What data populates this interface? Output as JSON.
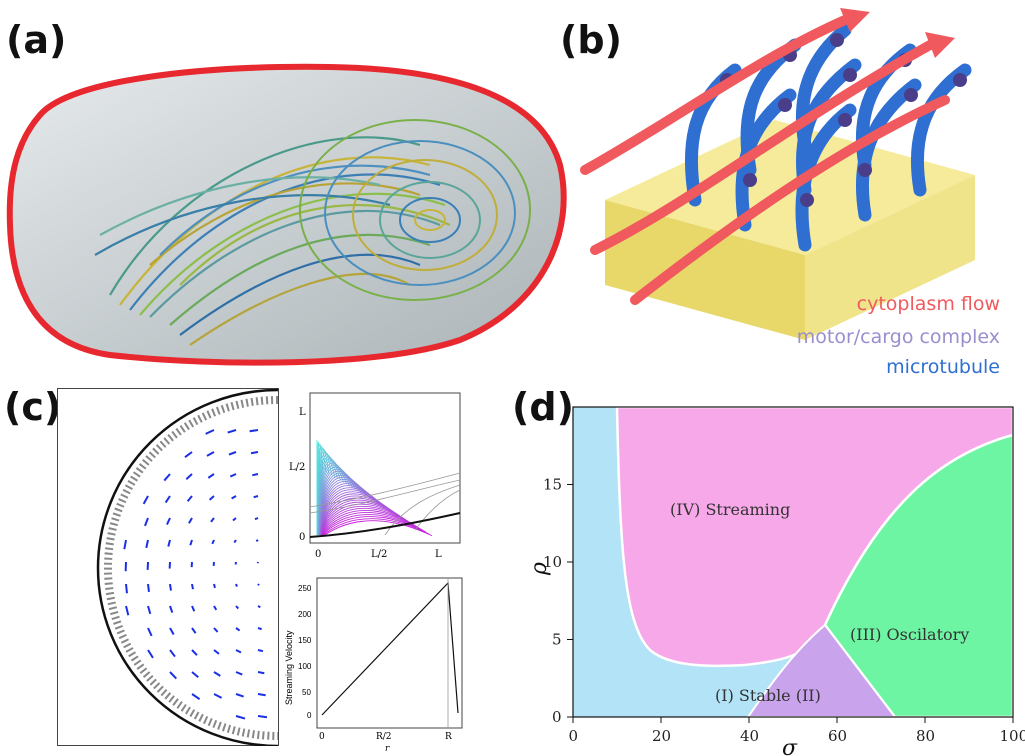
{
  "panels": {
    "a": {
      "label": "(a)"
    },
    "b": {
      "label": "(b)",
      "legend": {
        "flow": "cytoplasm flow",
        "motor": "motor/cargo complex",
        "microtubule": "microtubule"
      },
      "colors": {
        "flow": "#f05a5f",
        "motor": "#9b8ecf",
        "microtubule": "#2e6fd1"
      }
    },
    "c": {
      "label": "(c)",
      "inset_top": {
        "yticks": [
          "L",
          "L/2",
          "0"
        ],
        "xticks": [
          "0",
          "L/2",
          "L"
        ]
      },
      "inset_bottom": {
        "ylabel": "Streaming Velocity",
        "xlabel": "r",
        "yticks": [
          "250",
          "200",
          "150",
          "100",
          "50",
          "0"
        ],
        "xticks": [
          "0",
          "R/2",
          "R"
        ]
      }
    },
    "d": {
      "label": "(d)"
    }
  },
  "chart_data": {
    "type": "heatmap",
    "xlabel": "σ",
    "ylabel": "ρ",
    "xlim": [
      0,
      100
    ],
    "ylim": [
      0,
      20
    ],
    "xticks": [
      "0",
      "20",
      "40",
      "60",
      "80",
      "100"
    ],
    "yticks": [
      "0",
      "5",
      "10",
      "15"
    ],
    "regions": [
      {
        "name": "(I) Stable (II)",
        "color": "#b3e3f7"
      },
      {
        "name": "(IV) Streaming",
        "color": "#f7a8e8"
      },
      {
        "name": "(III) Oscilatory",
        "color": "#6df5a3"
      },
      {
        "name": "",
        "color": "#c9a3ec"
      }
    ]
  }
}
